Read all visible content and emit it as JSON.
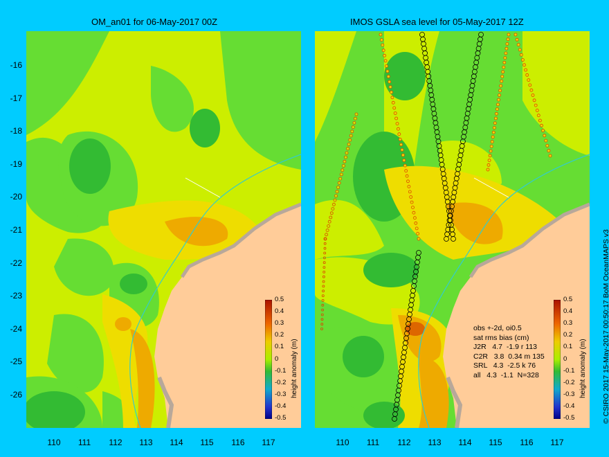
{
  "panels": [
    {
      "title": "OM_an01 for 06-May-2017 00Z"
    },
    {
      "title": "IMOS GSLA sea level  for 05-May-2017 12Z"
    }
  ],
  "axes": {
    "lat_ticks": [
      "-16",
      "-17",
      "-18",
      "-19",
      "-20",
      "-21",
      "-22",
      "-23",
      "-24",
      "-25",
      "-26"
    ],
    "lon_ticks": [
      "110",
      "111",
      "112",
      "113",
      "114",
      "115",
      "116",
      "117"
    ]
  },
  "colorbar": {
    "label": "height anomaly (m)",
    "ticks": [
      "0.5",
      "0.4",
      "0.3",
      "0.2",
      "0.1",
      "0",
      "-0.1",
      "-0.2",
      "-0.3",
      "-0.4",
      "-0.5"
    ]
  },
  "stats": {
    "line1": "obs +-2d, oi0.5",
    "line2": "sat rms bias (cm)",
    "line3": "J2R   4.7  -1.9 r 113",
    "line4": "C2R   3.8  0.34 m 135",
    "line5": "SRL   4.3  -2.5 k 76",
    "line6": "all   4.3  -1.1  N=328"
  },
  "credit": "© CSIRO 2017  15-May-2017 00:50:17 BoM OceanMAPS v3",
  "colors": {
    "background": "#00ccff",
    "land": "#ffcc99",
    "coast": "#b8a89a",
    "green": "#66dd33",
    "yellow_green": "#ccee00",
    "yellow": "#eedd00",
    "orange": "#eeaa00",
    "dark_green": "#33bb33"
  }
}
